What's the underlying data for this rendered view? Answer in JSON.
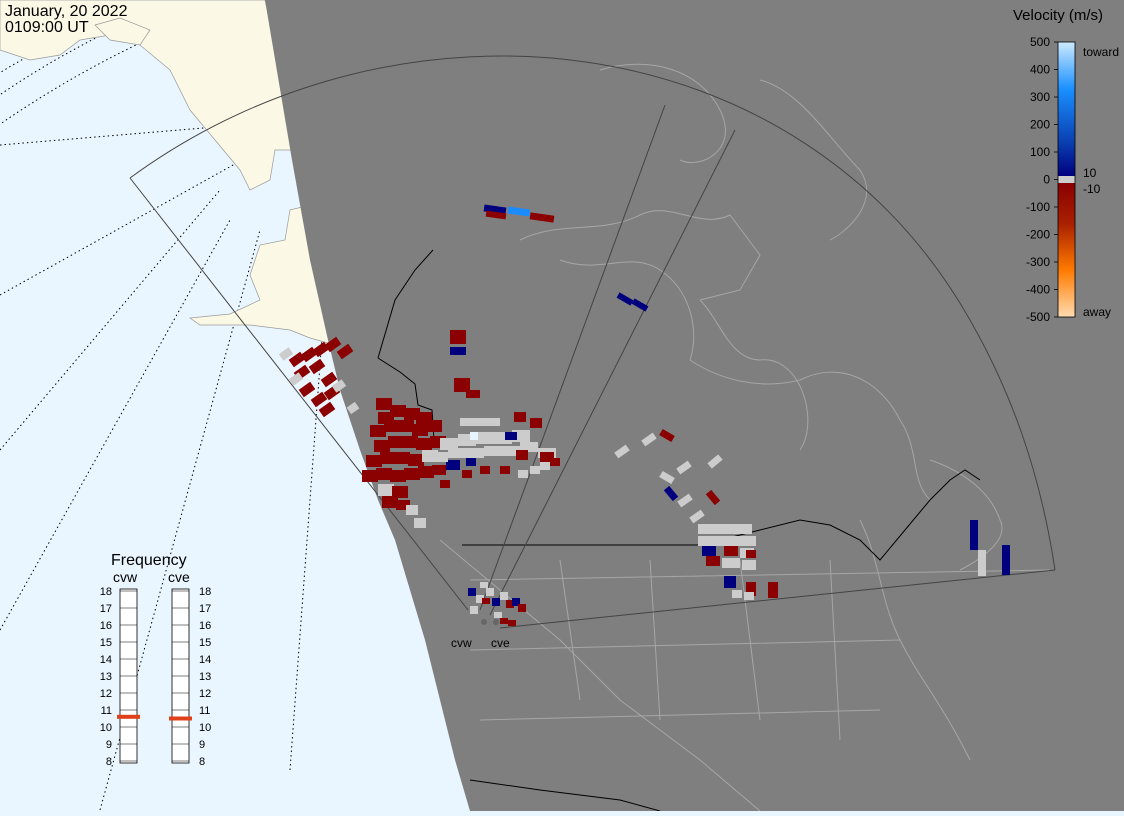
{
  "header": {
    "date": "January, 20 2022",
    "time": "0109:00 UT"
  },
  "velocity_scale": {
    "title": "Velocity (m/s)",
    "ticks": [
      "500",
      "400",
      "300",
      "200",
      "100",
      "0",
      "-100",
      "-200",
      "-300",
      "-400",
      "-500"
    ],
    "toward_label": "toward",
    "away_label": "away",
    "gap_upper": "10",
    "gap_lower": "-10",
    "colors": {
      "toward_high": "#bfe6ff",
      "toward_mid": "#1a8cff",
      "toward_low": "#00007f",
      "away_low": "#8b0000",
      "away_mid": "#ff7a00",
      "away_high": "#ffd9a6",
      "ground_scatter": "#cccccc"
    }
  },
  "frequency_panel": {
    "title": "Frequency",
    "columns": [
      {
        "station": "cvw",
        "marker_mhz": 10.6
      },
      {
        "station": "cve",
        "marker_mhz": 10.5
      }
    ],
    "scale": [
      "18",
      "17",
      "16",
      "15",
      "14",
      "13",
      "12",
      "11",
      "10",
      "9",
      "8"
    ],
    "marker_color": "#e0401a"
  },
  "stations": [
    {
      "name": "cvw"
    },
    {
      "name": "cve"
    }
  ],
  "map_colors": {
    "ocean": "#e9f6ff",
    "land_day": "#fbf8e6",
    "night_shade": "#7f7f7f",
    "grid": "#000000",
    "boundaries": "#a6a6a6"
  }
}
